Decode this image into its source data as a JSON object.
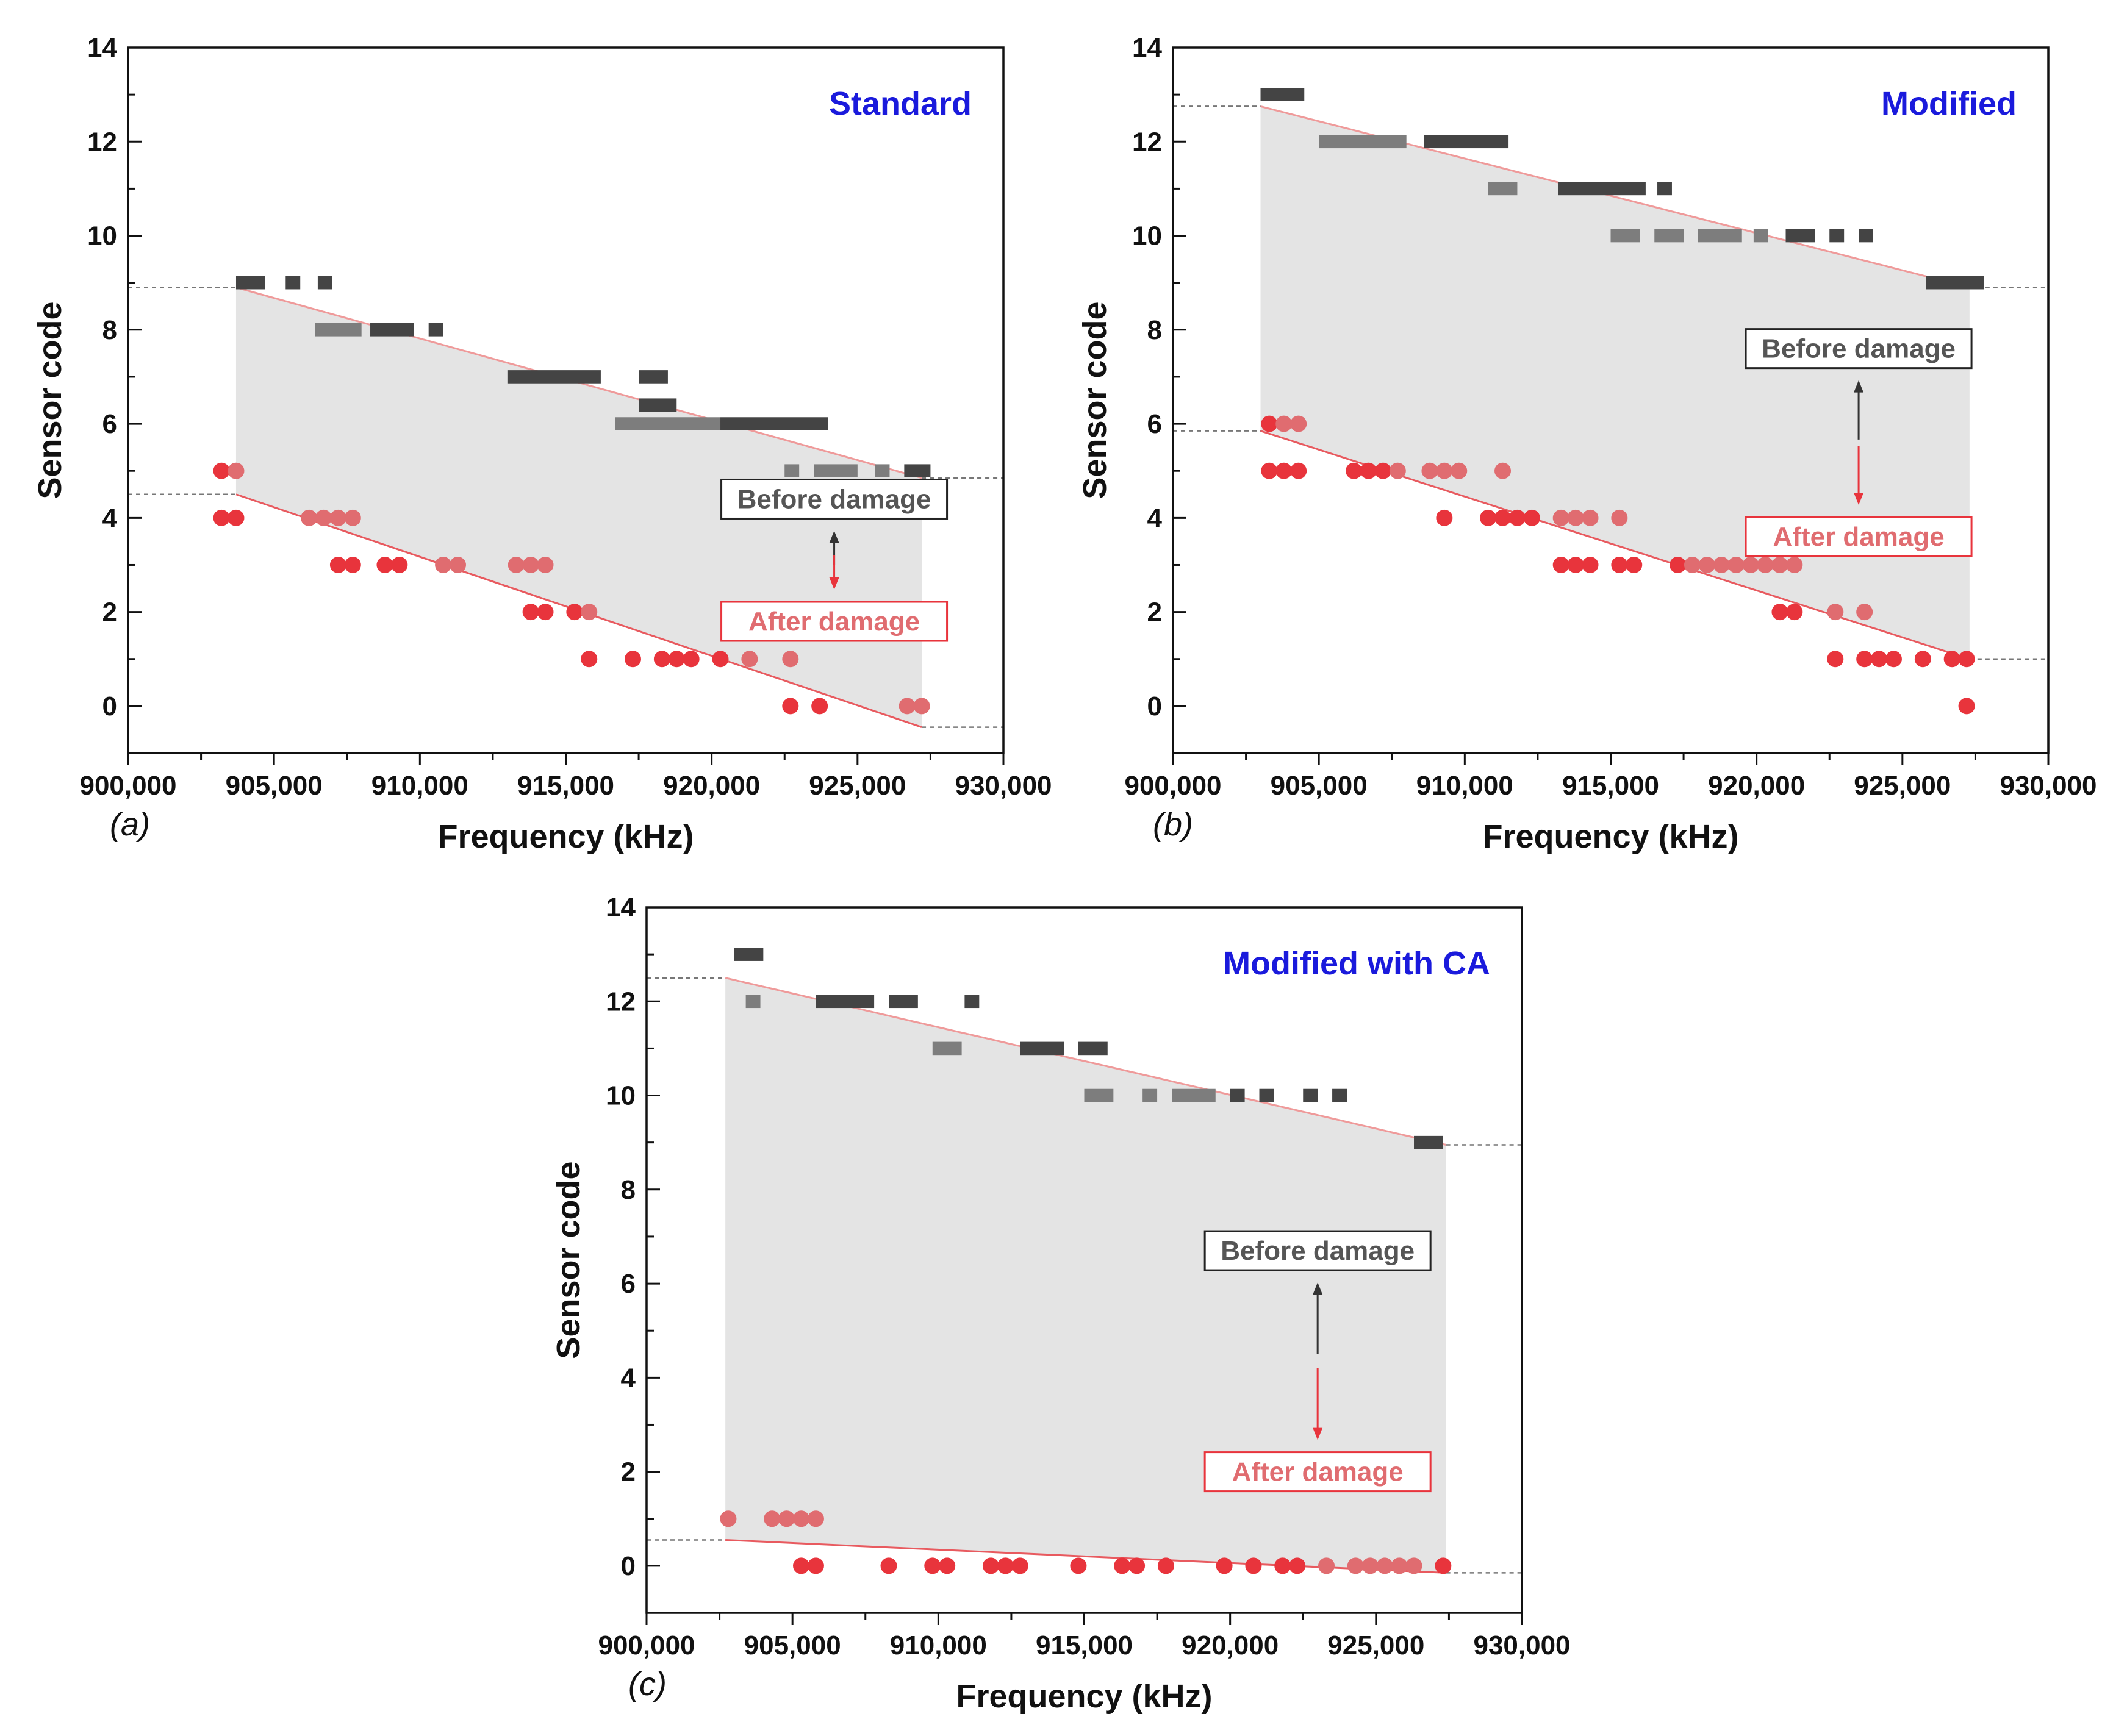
{
  "colors": {
    "title": "#1a1adc",
    "before_dark": "#444444",
    "before_light": "#7d7d7d",
    "after_dark": "#e8343c",
    "after_light": "#e06c70",
    "band": "#e4e4e4",
    "before_line": "#ef9a9a",
    "after_line": "#e85a5f",
    "dashed": "#777777"
  },
  "chart_data": [
    {
      "type": "scatter",
      "panel": "(a)",
      "title": "Standard",
      "xlabel": "Frequency (kHz)",
      "ylabel": "Sensor code",
      "xlim": [
        900000,
        930000
      ],
      "ylim": [
        -1,
        14
      ],
      "xticks": [
        "900,000",
        "905,000",
        "910,000",
        "915,000",
        "920,000",
        "925,000",
        "930,000"
      ],
      "yticks": [
        "0",
        "2",
        "4",
        "6",
        "8",
        "10",
        "12",
        "14"
      ],
      "legend": {
        "before": "Before damage",
        "after": "After damage"
      },
      "before_segments": [
        {
          "x1": 903700,
          "x2": 904700,
          "y": 9,
          "tone": "dark"
        },
        {
          "x1": 905400,
          "x2": 905900,
          "y": 9,
          "tone": "dark"
        },
        {
          "x1": 906500,
          "x2": 907000,
          "y": 9,
          "tone": "dark"
        },
        {
          "x1": 906400,
          "x2": 908000,
          "y": 8,
          "tone": "light"
        },
        {
          "x1": 908300,
          "x2": 909800,
          "y": 8,
          "tone": "dark"
        },
        {
          "x1": 910300,
          "x2": 910800,
          "y": 8,
          "tone": "dark"
        },
        {
          "x1": 913000,
          "x2": 916200,
          "y": 7,
          "tone": "dark"
        },
        {
          "x1": 917500,
          "x2": 918500,
          "y": 7,
          "tone": "dark"
        },
        {
          "x1": 917500,
          "x2": 918800,
          "y": 6.4,
          "tone": "dark"
        },
        {
          "x1": 916700,
          "x2": 920300,
          "y": 6,
          "tone": "light"
        },
        {
          "x1": 920300,
          "x2": 924000,
          "y": 6,
          "tone": "dark"
        },
        {
          "x1": 922500,
          "x2": 923000,
          "y": 5,
          "tone": "light"
        },
        {
          "x1": 923500,
          "x2": 925000,
          "y": 5,
          "tone": "light"
        },
        {
          "x1": 925600,
          "x2": 926100,
          "y": 5,
          "tone": "light"
        },
        {
          "x1": 926600,
          "x2": 927500,
          "y": 5,
          "tone": "dark"
        }
      ],
      "after_points": [
        {
          "x": 903200,
          "y": 5,
          "tone": "dark"
        },
        {
          "x": 903700,
          "y": 5,
          "tone": "light"
        },
        {
          "x": 903200,
          "y": 4,
          "tone": "dark"
        },
        {
          "x": 903700,
          "y": 4,
          "tone": "dark"
        },
        {
          "x": 906200,
          "y": 4,
          "tone": "light"
        },
        {
          "x": 906700,
          "y": 4,
          "tone": "light"
        },
        {
          "x": 907200,
          "y": 4,
          "tone": "light"
        },
        {
          "x": 907700,
          "y": 4,
          "tone": "light"
        },
        {
          "x": 907200,
          "y": 3,
          "tone": "dark"
        },
        {
          "x": 907700,
          "y": 3,
          "tone": "dark"
        },
        {
          "x": 908800,
          "y": 3,
          "tone": "dark"
        },
        {
          "x": 909300,
          "y": 3,
          "tone": "dark"
        },
        {
          "x": 910800,
          "y": 3,
          "tone": "light"
        },
        {
          "x": 911300,
          "y": 3,
          "tone": "light"
        },
        {
          "x": 913300,
          "y": 3,
          "tone": "light"
        },
        {
          "x": 913800,
          "y": 3,
          "tone": "light"
        },
        {
          "x": 914300,
          "y": 3,
          "tone": "light"
        },
        {
          "x": 913800,
          "y": 2,
          "tone": "dark"
        },
        {
          "x": 914300,
          "y": 2,
          "tone": "dark"
        },
        {
          "x": 915300,
          "y": 2,
          "tone": "dark"
        },
        {
          "x": 915800,
          "y": 2,
          "tone": "light"
        },
        {
          "x": 915800,
          "y": 1,
          "tone": "dark"
        },
        {
          "x": 917300,
          "y": 1,
          "tone": "dark"
        },
        {
          "x": 918300,
          "y": 1,
          "tone": "dark"
        },
        {
          "x": 918800,
          "y": 1,
          "tone": "dark"
        },
        {
          "x": 919300,
          "y": 1,
          "tone": "dark"
        },
        {
          "x": 920300,
          "y": 1,
          "tone": "dark"
        },
        {
          "x": 921300,
          "y": 1,
          "tone": "light"
        },
        {
          "x": 922700,
          "y": 1,
          "tone": "light"
        },
        {
          "x": 922700,
          "y": 0,
          "tone": "dark"
        },
        {
          "x": 923700,
          "y": 0,
          "tone": "dark"
        },
        {
          "x": 926700,
          "y": 0,
          "tone": "light"
        },
        {
          "x": 927200,
          "y": 0,
          "tone": "light"
        }
      ],
      "before_line": [
        [
          903700,
          8.9
        ],
        [
          927200,
          4.85
        ]
      ],
      "after_line": [
        [
          903700,
          4.5
        ],
        [
          927200,
          -0.45
        ]
      ],
      "legend_anchor": [
        924200,
        4.4
      ],
      "legend_after_anchor": [
        924200,
        1.8
      ]
    },
    {
      "type": "scatter",
      "panel": "(b)",
      "title": "Modified",
      "xlabel": "Frequency (kHz)",
      "ylabel": "Sensor code",
      "xlim": [
        900000,
        930000
      ],
      "ylim": [
        -1,
        14
      ],
      "xticks": [
        "900,000",
        "905,000",
        "910,000",
        "915,000",
        "920,000",
        "925,000",
        "930,000"
      ],
      "yticks": [
        "0",
        "2",
        "4",
        "6",
        "8",
        "10",
        "12",
        "14"
      ],
      "legend": {
        "before": "Before damage",
        "after": "After damage"
      },
      "before_segments": [
        {
          "x1": 903000,
          "x2": 904500,
          "y": 13,
          "tone": "dark"
        },
        {
          "x1": 905000,
          "x2": 908000,
          "y": 12,
          "tone": "light"
        },
        {
          "x1": 908600,
          "x2": 911500,
          "y": 12,
          "tone": "dark"
        },
        {
          "x1": 910800,
          "x2": 911800,
          "y": 11,
          "tone": "light"
        },
        {
          "x1": 913200,
          "x2": 916200,
          "y": 11,
          "tone": "dark"
        },
        {
          "x1": 916600,
          "x2": 917100,
          "y": 11,
          "tone": "dark"
        },
        {
          "x1": 915000,
          "x2": 916000,
          "y": 10,
          "tone": "light"
        },
        {
          "x1": 916500,
          "x2": 917500,
          "y": 10,
          "tone": "light"
        },
        {
          "x1": 918000,
          "x2": 919500,
          "y": 10,
          "tone": "light"
        },
        {
          "x1": 919900,
          "x2": 920400,
          "y": 10,
          "tone": "light"
        },
        {
          "x1": 921000,
          "x2": 922000,
          "y": 10,
          "tone": "dark"
        },
        {
          "x1": 922500,
          "x2": 923000,
          "y": 10,
          "tone": "dark"
        },
        {
          "x1": 923500,
          "x2": 924000,
          "y": 10,
          "tone": "dark"
        },
        {
          "x1": 925800,
          "x2": 927800,
          "y": 9,
          "tone": "dark"
        }
      ],
      "after_points": [
        {
          "x": 903300,
          "y": 6,
          "tone": "dark"
        },
        {
          "x": 903800,
          "y": 6,
          "tone": "light"
        },
        {
          "x": 904300,
          "y": 6,
          "tone": "light"
        },
        {
          "x": 903300,
          "y": 5,
          "tone": "dark"
        },
        {
          "x": 903800,
          "y": 5,
          "tone": "dark"
        },
        {
          "x": 904300,
          "y": 5,
          "tone": "dark"
        },
        {
          "x": 906200,
          "y": 5,
          "tone": "dark"
        },
        {
          "x": 906700,
          "y": 5,
          "tone": "dark"
        },
        {
          "x": 907200,
          "y": 5,
          "tone": "dark"
        },
        {
          "x": 907700,
          "y": 5,
          "tone": "light"
        },
        {
          "x": 908800,
          "y": 5,
          "tone": "light"
        },
        {
          "x": 909300,
          "y": 5,
          "tone": "light"
        },
        {
          "x": 909800,
          "y": 5,
          "tone": "light"
        },
        {
          "x": 911300,
          "y": 5,
          "tone": "light"
        },
        {
          "x": 909300,
          "y": 4,
          "tone": "dark"
        },
        {
          "x": 910800,
          "y": 4,
          "tone": "dark"
        },
        {
          "x": 911300,
          "y": 4,
          "tone": "dark"
        },
        {
          "x": 911800,
          "y": 4,
          "tone": "dark"
        },
        {
          "x": 912300,
          "y": 4,
          "tone": "dark"
        },
        {
          "x": 913300,
          "y": 4,
          "tone": "light"
        },
        {
          "x": 913800,
          "y": 4,
          "tone": "light"
        },
        {
          "x": 914300,
          "y": 4,
          "tone": "light"
        },
        {
          "x": 915300,
          "y": 4,
          "tone": "light"
        },
        {
          "x": 913300,
          "y": 3,
          "tone": "dark"
        },
        {
          "x": 913800,
          "y": 3,
          "tone": "dark"
        },
        {
          "x": 914300,
          "y": 3,
          "tone": "dark"
        },
        {
          "x": 915300,
          "y": 3,
          "tone": "dark"
        },
        {
          "x": 915800,
          "y": 3,
          "tone": "dark"
        },
        {
          "x": 917300,
          "y": 3,
          "tone": "dark"
        },
        {
          "x": 917800,
          "y": 3,
          "tone": "light"
        },
        {
          "x": 918300,
          "y": 3,
          "tone": "light"
        },
        {
          "x": 918800,
          "y": 3,
          "tone": "light"
        },
        {
          "x": 919300,
          "y": 3,
          "tone": "light"
        },
        {
          "x": 919800,
          "y": 3,
          "tone": "light"
        },
        {
          "x": 920300,
          "y": 3,
          "tone": "light"
        },
        {
          "x": 920800,
          "y": 3,
          "tone": "light"
        },
        {
          "x": 921300,
          "y": 3,
          "tone": "light"
        },
        {
          "x": 920800,
          "y": 2,
          "tone": "dark"
        },
        {
          "x": 921300,
          "y": 2,
          "tone": "dark"
        },
        {
          "x": 922700,
          "y": 2,
          "tone": "light"
        },
        {
          "x": 923700,
          "y": 2,
          "tone": "light"
        },
        {
          "x": 922700,
          "y": 1,
          "tone": "dark"
        },
        {
          "x": 923700,
          "y": 1,
          "tone": "dark"
        },
        {
          "x": 924200,
          "y": 1,
          "tone": "dark"
        },
        {
          "x": 924700,
          "y": 1,
          "tone": "dark"
        },
        {
          "x": 925700,
          "y": 1,
          "tone": "dark"
        },
        {
          "x": 926700,
          "y": 1,
          "tone": "dark"
        },
        {
          "x": 927200,
          "y": 1,
          "tone": "dark"
        },
        {
          "x": 927200,
          "y": 0,
          "tone": "dark"
        }
      ],
      "before_line": [
        [
          903000,
          12.75
        ],
        [
          927300,
          8.9
        ]
      ],
      "after_line": [
        [
          903000,
          5.85
        ],
        [
          927300,
          1.0
        ]
      ],
      "legend_anchor": [
        923500,
        7.6
      ],
      "legend_after_anchor": [
        923500,
        3.6
      ]
    },
    {
      "type": "scatter",
      "panel": "(c)",
      "title": "Modified with CA",
      "xlabel": "Frequency (kHz)",
      "ylabel": "Sensor code",
      "xlim": [
        900000,
        930000
      ],
      "ylim": [
        -1,
        14
      ],
      "xticks": [
        "900,000",
        "905,000",
        "910,000",
        "915,000",
        "920,000",
        "925,000",
        "930,000"
      ],
      "yticks": [
        "0",
        "2",
        "4",
        "6",
        "8",
        "10",
        "12",
        "14"
      ],
      "legend": {
        "before": "Before damage",
        "after": "After damage"
      },
      "before_segments": [
        {
          "x1": 903000,
          "x2": 904000,
          "y": 13,
          "tone": "dark"
        },
        {
          "x1": 903400,
          "x2": 903900,
          "y": 12,
          "tone": "light"
        },
        {
          "x1": 905800,
          "x2": 907800,
          "y": 12,
          "tone": "dark"
        },
        {
          "x1": 908300,
          "x2": 909300,
          "y": 12,
          "tone": "dark"
        },
        {
          "x1": 910900,
          "x2": 911400,
          "y": 12,
          "tone": "dark"
        },
        {
          "x1": 909800,
          "x2": 910800,
          "y": 11,
          "tone": "light"
        },
        {
          "x1": 912800,
          "x2": 914300,
          "y": 11,
          "tone": "dark"
        },
        {
          "x1": 914800,
          "x2": 915800,
          "y": 11,
          "tone": "dark"
        },
        {
          "x1": 915000,
          "x2": 916000,
          "y": 10,
          "tone": "light"
        },
        {
          "x1": 917000,
          "x2": 917500,
          "y": 10,
          "tone": "light"
        },
        {
          "x1": 918000,
          "x2": 919500,
          "y": 10,
          "tone": "light"
        },
        {
          "x1": 920000,
          "x2": 920500,
          "y": 10,
          "tone": "dark"
        },
        {
          "x1": 921000,
          "x2": 921500,
          "y": 10,
          "tone": "dark"
        },
        {
          "x1": 922500,
          "x2": 923000,
          "y": 10,
          "tone": "dark"
        },
        {
          "x1": 923500,
          "x2": 924000,
          "y": 10,
          "tone": "dark"
        },
        {
          "x1": 926300,
          "x2": 927300,
          "y": 9,
          "tone": "dark"
        }
      ],
      "after_points": [
        {
          "x": 902800,
          "y": 1,
          "tone": "light"
        },
        {
          "x": 904300,
          "y": 1,
          "tone": "light"
        },
        {
          "x": 904800,
          "y": 1,
          "tone": "light"
        },
        {
          "x": 905300,
          "y": 1,
          "tone": "light"
        },
        {
          "x": 905800,
          "y": 1,
          "tone": "light"
        },
        {
          "x": 905300,
          "y": 0,
          "tone": "dark"
        },
        {
          "x": 905800,
          "y": 0,
          "tone": "dark"
        },
        {
          "x": 908300,
          "y": 0,
          "tone": "dark"
        },
        {
          "x": 909800,
          "y": 0,
          "tone": "dark"
        },
        {
          "x": 910300,
          "y": 0,
          "tone": "dark"
        },
        {
          "x": 911800,
          "y": 0,
          "tone": "dark"
        },
        {
          "x": 912300,
          "y": 0,
          "tone": "dark"
        },
        {
          "x": 912800,
          "y": 0,
          "tone": "dark"
        },
        {
          "x": 914800,
          "y": 0,
          "tone": "dark"
        },
        {
          "x": 916300,
          "y": 0,
          "tone": "dark"
        },
        {
          "x": 916800,
          "y": 0,
          "tone": "dark"
        },
        {
          "x": 917800,
          "y": 0,
          "tone": "dark"
        },
        {
          "x": 919800,
          "y": 0,
          "tone": "dark"
        },
        {
          "x": 920800,
          "y": 0,
          "tone": "dark"
        },
        {
          "x": 921800,
          "y": 0,
          "tone": "dark"
        },
        {
          "x": 922300,
          "y": 0,
          "tone": "dark"
        },
        {
          "x": 923300,
          "y": 0,
          "tone": "light"
        },
        {
          "x": 924300,
          "y": 0,
          "tone": "light"
        },
        {
          "x": 924800,
          "y": 0,
          "tone": "light"
        },
        {
          "x": 925300,
          "y": 0,
          "tone": "light"
        },
        {
          "x": 925800,
          "y": 0,
          "tone": "light"
        },
        {
          "x": 926300,
          "y": 0,
          "tone": "light"
        },
        {
          "x": 927300,
          "y": 0,
          "tone": "dark"
        }
      ],
      "before_line": [
        [
          902700,
          12.5
        ],
        [
          927400,
          8.95
        ]
      ],
      "after_line": [
        [
          902700,
          0.55
        ],
        [
          927400,
          -0.15
        ]
      ],
      "legend_anchor": [
        923000,
        6.7
      ],
      "legend_after_anchor": [
        923000,
        2.0
      ]
    }
  ]
}
